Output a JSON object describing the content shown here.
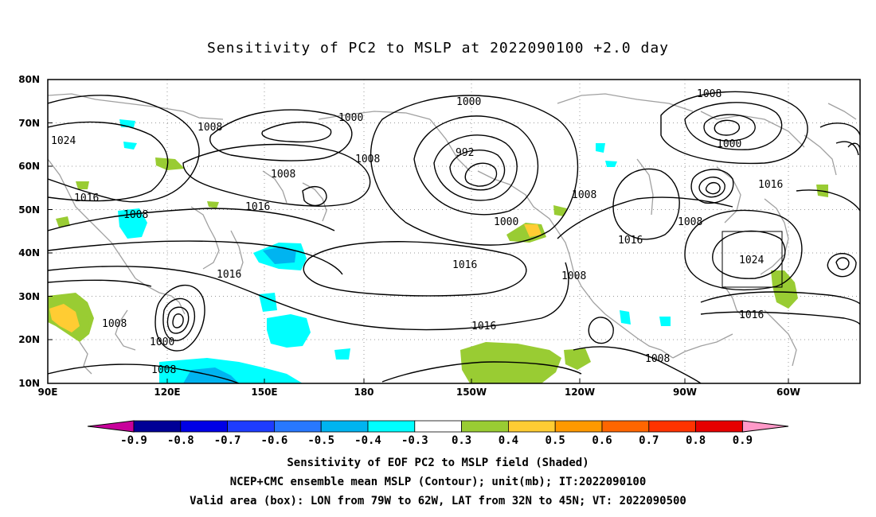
{
  "title": "Sensitivity of PC2 to MSLP at 2022090100 +2.0 day",
  "map": {
    "lon_range": [
      "90E",
      "50W"
    ],
    "lat_range": [
      "10N",
      "80N"
    ],
    "lat_ticks": [
      "80N",
      "70N",
      "60N",
      "50N",
      "40N",
      "30N",
      "20N",
      "10N"
    ],
    "lon_ticks": [
      "90E",
      "120E",
      "150E",
      "180",
      "150W",
      "120W",
      "90W",
      "60W"
    ],
    "grid": "dotted",
    "coastlines_color": "#a0a0a0",
    "contour_labels": [
      "1000",
      "1008",
      "1024",
      "1008",
      "1016",
      "1008",
      "1016",
      "1008",
      "1000",
      "992",
      "1008",
      "1016",
      "1008",
      "1000",
      "1008",
      "1016",
      "1008",
      "1000",
      "1024",
      "1016",
      "1008",
      "1016",
      "1008",
      "1016",
      "1016",
      "1008",
      "1000",
      "1008",
      "1008"
    ],
    "validation_box": {
      "lon": [
        "79W",
        "62W"
      ],
      "lat": [
        "32N",
        "45N"
      ]
    }
  },
  "colorbar": {
    "labels": [
      "-0.9",
      "-0.8",
      "-0.7",
      "-0.6",
      "-0.5",
      "-0.4",
      "-0.3",
      "0.3",
      "0.4",
      "0.5",
      "0.6",
      "0.7",
      "0.8",
      "0.9"
    ],
    "colors": [
      "#000096",
      "#0000e6",
      "#1e3cff",
      "#2878ff",
      "#00b4f0",
      "#00ffff",
      "#ffffff",
      "#99cc33",
      "#ffcc33",
      "#ff9900",
      "#ff6600",
      "#ff3300",
      "#e60000"
    ],
    "left_tip": "#c8009b",
    "right_tip": "#ff99c8"
  },
  "captions": [
    "Sensitivity of EOF PC2 to MSLP field (Shaded)",
    "NCEP+CMC ensemble mean MSLP (Contour); unit(mb); IT:2022090100",
    "Valid area (box): LON from 79W to 62W, LAT from 32N to 45N; VT: 2022090500"
  ]
}
